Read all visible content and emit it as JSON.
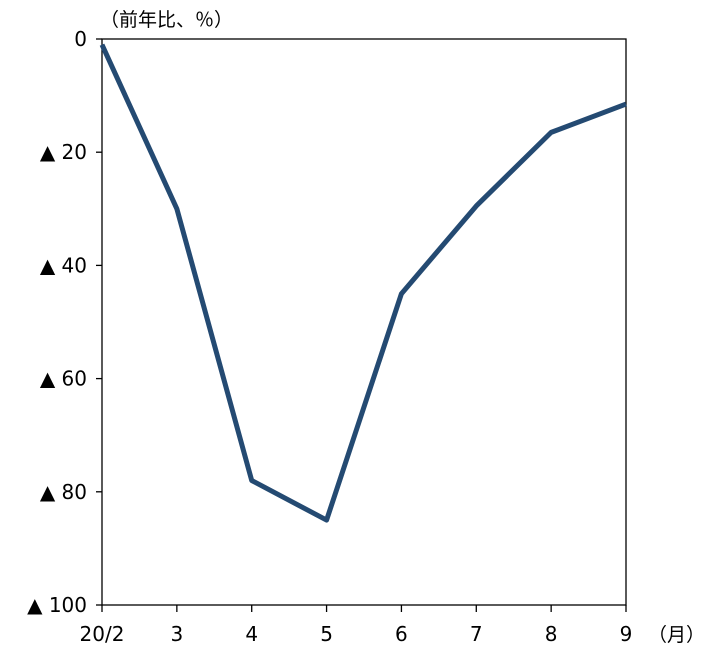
{
  "chart_data": {
    "type": "line",
    "title": "",
    "ylabel": "（前年比、％）",
    "xlabel": "（月）",
    "categories": [
      "20/2",
      "3",
      "4",
      "5",
      "6",
      "7",
      "8",
      "9"
    ],
    "series": [
      {
        "values": [
          -1,
          -30,
          -78,
          -85,
          -45,
          -29.5,
          -16.5,
          -11.5
        ],
        "color": "#244a72"
      }
    ],
    "ylim": [
      -100,
      0
    ],
    "yticks": [
      0,
      -20,
      -40,
      -60,
      -80,
      -100
    ],
    "ytick_labels": [
      "0",
      "▲ 20",
      "▲ 40",
      "▲ 60",
      "▲ 80",
      "▲ 100"
    ],
    "grid": false,
    "legend": "none"
  }
}
